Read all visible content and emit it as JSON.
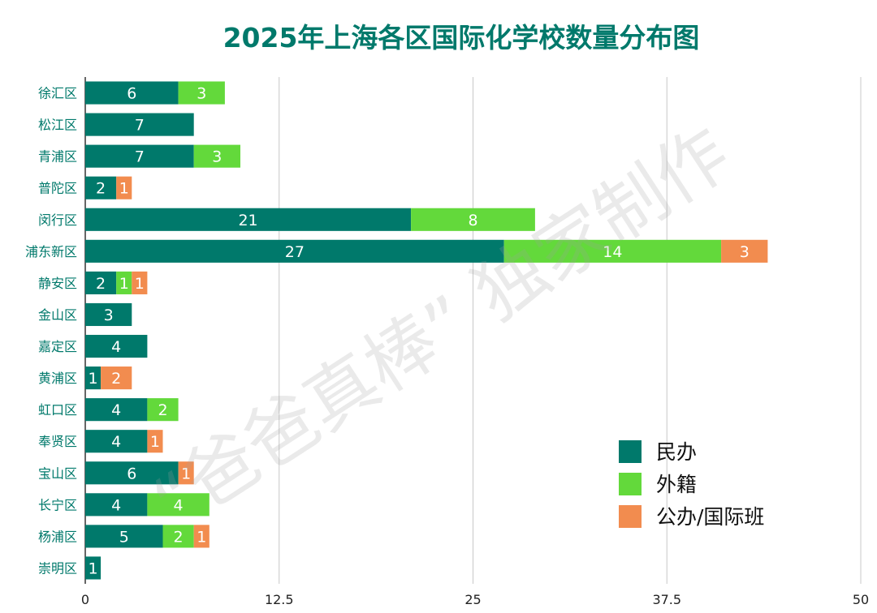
{
  "chart_data": {
    "type": "bar",
    "orientation": "horizontal",
    "stacked": true,
    "title": "2025年上海各区国际化学校数量分布图",
    "xlabel": "",
    "ylabel": "",
    "xlim": [
      0,
      50
    ],
    "x_ticks": [
      "0",
      "12.5",
      "25",
      "37.5",
      "50"
    ],
    "x_tick_values": [
      0,
      12.5,
      25,
      37.5,
      50
    ],
    "grid": true,
    "legend_position": "bottom-right",
    "categories": [
      "徐汇区",
      "松江区",
      "青浦区",
      "普陀区",
      "闵行区",
      "浦东新区",
      "静安区",
      "金山区",
      "嘉定区",
      "黄浦区",
      "虹口区",
      "奉贤区",
      "宝山区",
      "长宁区",
      "杨浦区",
      "崇明区"
    ],
    "series": [
      {
        "name": "民办",
        "color": "#00796b",
        "values": [
          6,
          7,
          7,
          2,
          21,
          27,
          2,
          3,
          4,
          1,
          4,
          4,
          6,
          4,
          5,
          1
        ]
      },
      {
        "name": "外籍",
        "color": "#63d93b",
        "values": [
          3,
          0,
          3,
          0,
          8,
          14,
          1,
          0,
          0,
          0,
          2,
          0,
          0,
          4,
          2,
          0
        ]
      },
      {
        "name": "公办/国际班",
        "color": "#f28c4f",
        "values": [
          0,
          0,
          0,
          1,
          0,
          3,
          1,
          0,
          0,
          2,
          0,
          1,
          1,
          0,
          1,
          0
        ]
      }
    ]
  },
  "watermark": "“爸爸真棒” 独家制作",
  "colors": {
    "title": "#00796b",
    "category_label": "#00796b",
    "gridline": "#c8c8c8"
  }
}
